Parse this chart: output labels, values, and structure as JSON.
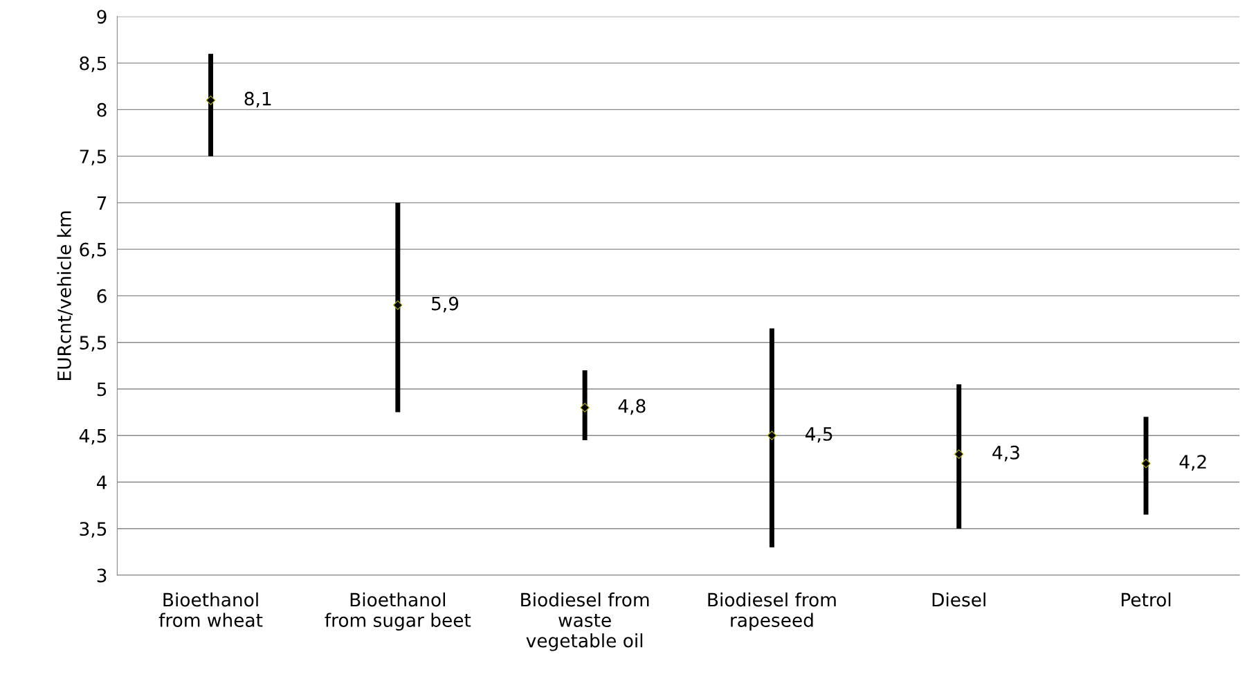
{
  "chart_data": {
    "type": "scatter",
    "ylabel": "EURcnt/vehicle km",
    "categories": [
      "Bioethanol\nfrom wheat",
      "Bioethanol\nfrom sugar beet",
      "Biodiesel from\nwaste\nvegetable oil",
      "Biodiesel from\nrapeseed",
      "Diesel",
      "Petrol"
    ],
    "values": [
      8.1,
      5.9,
      4.8,
      4.5,
      4.3,
      4.2
    ],
    "errors": [
      [
        7.5,
        8.6
      ],
      [
        4.75,
        7.0
      ],
      [
        4.45,
        5.2
      ],
      [
        3.3,
        5.65
      ],
      [
        3.5,
        5.05
      ],
      [
        3.65,
        4.7
      ]
    ],
    "value_labels": [
      "8,1",
      "5,9",
      "4,8",
      "4,5",
      "4,3",
      "4,2"
    ],
    "color": "#000000",
    "marker": "diamond",
    "ylim": [
      3,
      9
    ],
    "yticks": [
      3,
      {
        "value": 3.5,
        "label": "3,5"
      },
      4,
      {
        "value": 4.5,
        "label": "4,5"
      },
      5,
      {
        "value": 5.5,
        "label": "5,5"
      },
      6,
      {
        "value": 6.5,
        "label": "6,5"
      },
      7,
      {
        "value": 7.5,
        "label": "7,5"
      },
      8,
      {
        "value": 8.5,
        "label": "8,5"
      },
      9
    ],
    "grid": "y"
  }
}
